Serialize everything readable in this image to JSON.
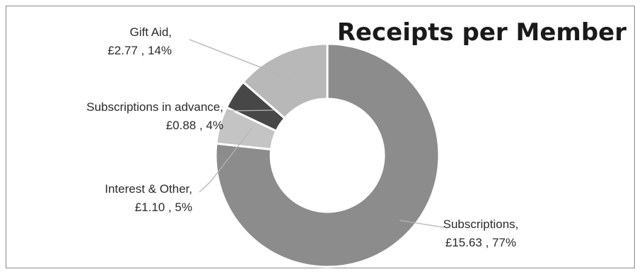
{
  "chart_data": {
    "type": "pie",
    "variant": "doughnut",
    "title": "Receipts per Member",
    "currency": "£",
    "slices": [
      {
        "name": "Subscriptions",
        "value": 15.63,
        "value_label": "£15.63",
        "percent_label": "77%",
        "color": "#8c8c8c"
      },
      {
        "name": "Interest & Other",
        "value": 1.1,
        "value_label": "£1.10",
        "percent_label": "5%",
        "color": "#c4c4c4"
      },
      {
        "name": "Subscriptions in advance",
        "value": 0.88,
        "value_label": "£0.88",
        "percent_label": "4%",
        "color": "#474747"
      },
      {
        "name": "Gift Aid",
        "value": 2.77,
        "value_label": "£2.77",
        "percent_label": "14%",
        "color": "#b8b8b8"
      }
    ],
    "legend": "none",
    "labels": "outside-with-leaders"
  }
}
